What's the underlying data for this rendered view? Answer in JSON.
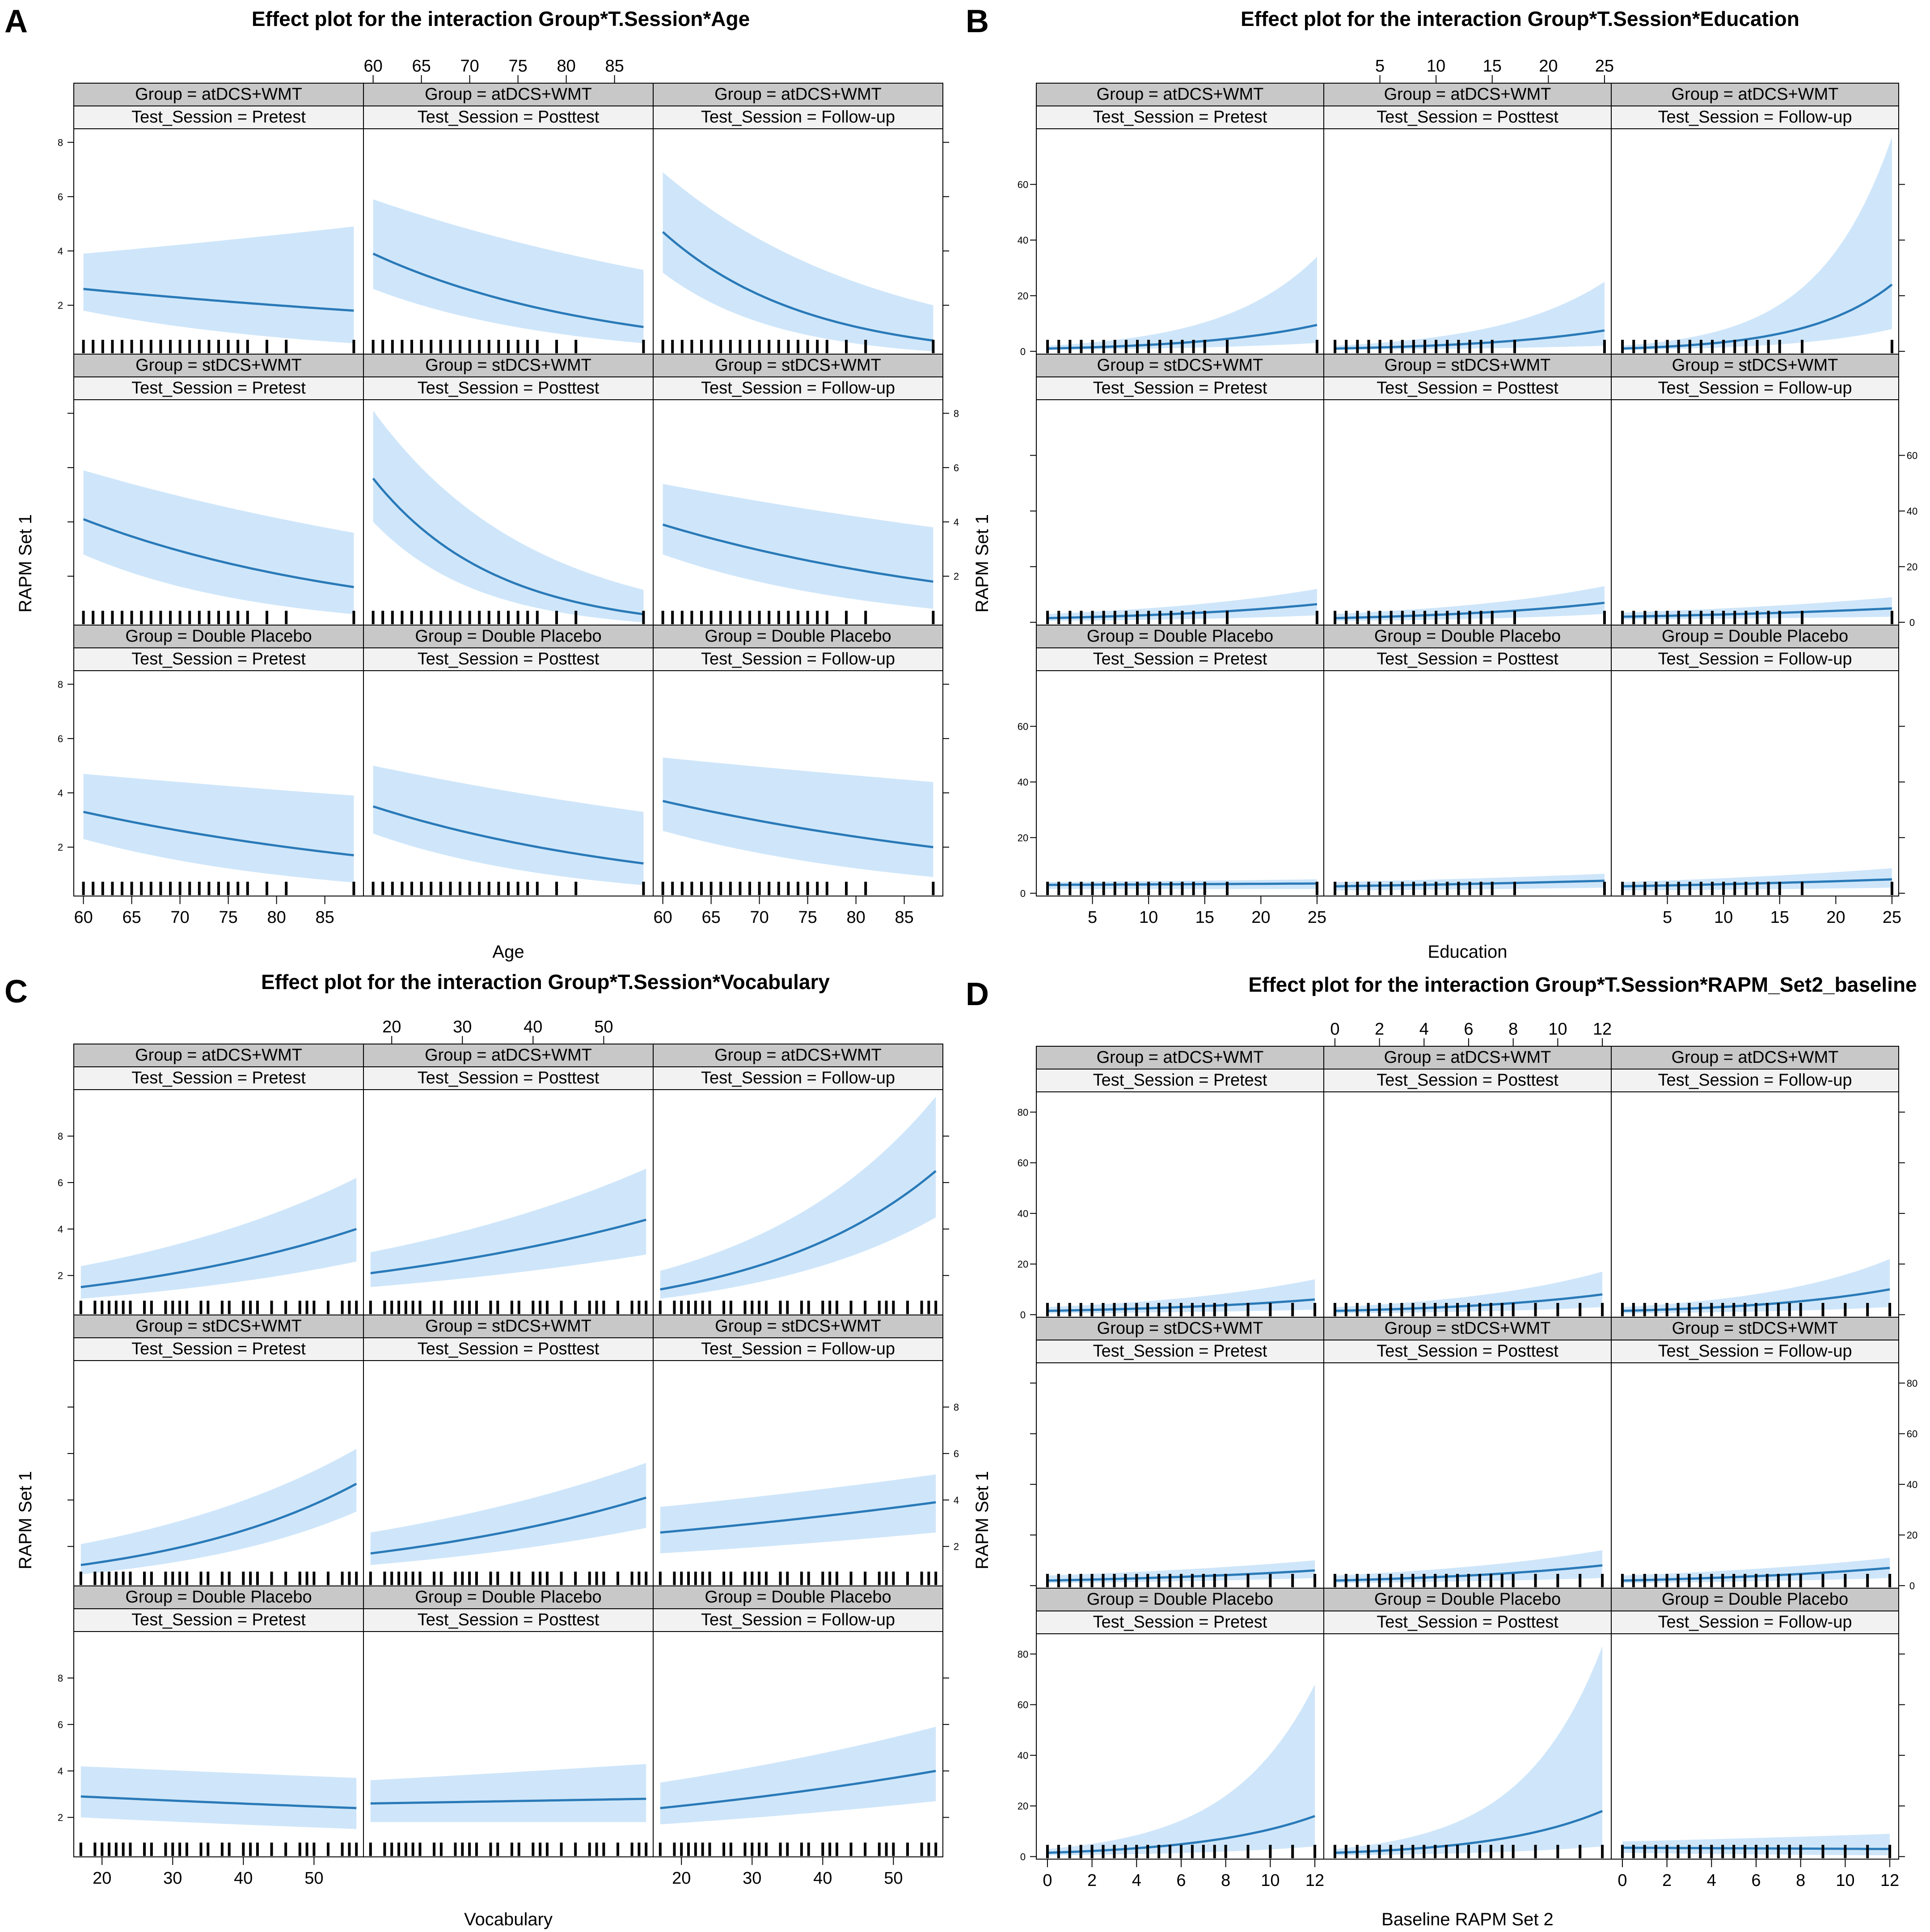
{
  "chart_data": [
    {
      "type": "line",
      "letter": "A",
      "title": "Effect plot for the interaction Group*T.Session*Age",
      "xlabel": "Age",
      "ylabel": "RAPM Set 1",
      "xlim": [
        59,
        89
      ],
      "ylim": [
        0.2,
        8.5
      ],
      "xticks": [
        "60",
        "65",
        "70",
        "75",
        "80",
        "85"
      ],
      "yticks": [
        "2",
        "4",
        "6",
        "8"
      ],
      "rug": [
        60,
        61,
        62,
        63,
        64,
        65,
        66,
        67,
        68,
        69,
        70,
        71,
        72,
        73,
        74,
        75,
        76,
        77,
        79,
        81,
        88
      ],
      "panels": [
        {
          "group": "Group = atDCS+WMT",
          "session": "Test_Session = Pretest",
          "x": [
            60,
            88
          ],
          "y": [
            2.6,
            1.8
          ],
          "lower": [
            1.8,
            0.6
          ],
          "upper": [
            3.9,
            4.9
          ]
        },
        {
          "group": "Group = atDCS+WMT",
          "session": "Test_Session = Posttest",
          "x": [
            60,
            88
          ],
          "y": [
            3.9,
            1.2
          ],
          "lower": [
            2.6,
            0.6
          ],
          "upper": [
            5.9,
            3.3
          ]
        },
        {
          "group": "Group = atDCS+WMT",
          "session": "Test_Session = Follow-up",
          "x": [
            60,
            88
          ],
          "y": [
            4.7,
            0.7
          ],
          "lower": [
            3.2,
            0.3
          ],
          "upper": [
            6.9,
            2.0
          ]
        },
        {
          "group": "Group = stDCS+WMT",
          "session": "Test_Session = Pretest",
          "x": [
            60,
            88
          ],
          "y": [
            4.1,
            1.6
          ],
          "lower": [
            2.8,
            0.6
          ],
          "upper": [
            5.9,
            3.6
          ]
        },
        {
          "group": "Group = stDCS+WMT",
          "session": "Test_Session = Posttest",
          "x": [
            60,
            88
          ],
          "y": [
            5.6,
            0.6
          ],
          "lower": [
            4.0,
            0.3
          ],
          "upper": [
            8.1,
            1.5
          ]
        },
        {
          "group": "Group = stDCS+WMT",
          "session": "Test_Session = Follow-up",
          "x": [
            60,
            88
          ],
          "y": [
            3.9,
            1.8
          ],
          "lower": [
            2.8,
            0.8
          ],
          "upper": [
            5.4,
            3.8
          ]
        },
        {
          "group": "Group = Double Placebo",
          "session": "Test_Session = Pretest",
          "x": [
            60,
            88
          ],
          "y": [
            3.3,
            1.7
          ],
          "lower": [
            2.3,
            0.7
          ],
          "upper": [
            4.7,
            3.9
          ]
        },
        {
          "group": "Group = Double Placebo",
          "session": "Test_Session = Posttest",
          "x": [
            60,
            88
          ],
          "y": [
            3.5,
            1.4
          ],
          "lower": [
            2.5,
            0.6
          ],
          "upper": [
            5.0,
            3.3
          ]
        },
        {
          "group": "Group = Double Placebo",
          "session": "Test_Session = Follow-up",
          "x": [
            60,
            88
          ],
          "y": [
            3.7,
            2.0
          ],
          "lower": [
            2.6,
            0.9
          ],
          "upper": [
            5.3,
            4.4
          ]
        }
      ]
    },
    {
      "type": "line",
      "letter": "B",
      "title": "Effect plot for the interaction Group*T.Session*Education",
      "xlabel": "Education",
      "ylabel": "RAPM Set 1",
      "xlim": [
        0,
        25.6
      ],
      "ylim": [
        -1,
        80
      ],
      "xticks": [
        "5",
        "10",
        "15",
        "20",
        "25"
      ],
      "yticks": [
        "0",
        "20",
        "40",
        "60"
      ],
      "rug": [
        1,
        2,
        3,
        4,
        5,
        6,
        7,
        8,
        9,
        10,
        11,
        12,
        13,
        14,
        15,
        17,
        25
      ],
      "panels": [
        {
          "group": "Group = atDCS+WMT",
          "session": "Test_Session = Pretest",
          "x": [
            1,
            25
          ],
          "y": [
            1,
            9.5
          ],
          "lower": [
            0.5,
            3
          ],
          "upper": [
            2,
            34
          ]
        },
        {
          "group": "Group = atDCS+WMT",
          "session": "Test_Session = Posttest",
          "x": [
            1,
            25
          ],
          "y": [
            1,
            7.5
          ],
          "lower": [
            0.5,
            2
          ],
          "upper": [
            2,
            25
          ]
        },
        {
          "group": "Group = atDCS+WMT",
          "session": "Test_Session = Follow-up",
          "x": [
            1,
            25
          ],
          "y": [
            1,
            24
          ],
          "lower": [
            0.5,
            8
          ],
          "upper": [
            2,
            77
          ]
        },
        {
          "group": "Group = stDCS+WMT",
          "session": "Test_Session = Pretest",
          "x": [
            1,
            25
          ],
          "y": [
            1.5,
            6.5
          ],
          "lower": [
            0.5,
            2.5
          ],
          "upper": [
            3,
            12
          ]
        },
        {
          "group": "Group = stDCS+WMT",
          "session": "Test_Session = Posttest",
          "x": [
            1,
            25
          ],
          "y": [
            1.5,
            7
          ],
          "lower": [
            0.5,
            3
          ],
          "upper": [
            3,
            13
          ]
        },
        {
          "group": "Group = stDCS+WMT",
          "session": "Test_Session = Follow-up",
          "x": [
            1,
            25
          ],
          "y": [
            2,
            5
          ],
          "lower": [
            1,
            2
          ],
          "upper": [
            3.5,
            9
          ]
        },
        {
          "group": "Group = Double Placebo",
          "session": "Test_Session = Pretest",
          "x": [
            1,
            25
          ],
          "y": [
            3,
            3.5
          ],
          "lower": [
            1.5,
            1.5
          ],
          "upper": [
            4,
            5
          ]
        },
        {
          "group": "Group = Double Placebo",
          "session": "Test_Session = Posttest",
          "x": [
            1,
            25
          ],
          "y": [
            2.5,
            4.5
          ],
          "lower": [
            1,
            2
          ],
          "upper": [
            4,
            7
          ]
        },
        {
          "group": "Group = Double Placebo",
          "session": "Test_Session = Follow-up",
          "x": [
            1,
            25
          ],
          "y": [
            2.5,
            5
          ],
          "lower": [
            1,
            2
          ],
          "upper": [
            4,
            9
          ]
        }
      ]
    },
    {
      "type": "line",
      "letter": "C",
      "title": "Effect plot for the interaction Group*T.Session*Vocabulary",
      "xlabel": "Vocabulary",
      "ylabel": "RAPM Set 1",
      "xlim": [
        16,
        57
      ],
      "ylim": [
        0.3,
        10
      ],
      "xticks": [
        "20",
        "30",
        "40",
        "50"
      ],
      "yticks": [
        "2",
        "4",
        "6",
        "8"
      ],
      "rug": [
        17,
        19,
        20,
        21,
        22,
        23,
        24,
        26,
        27,
        29,
        30,
        31,
        32,
        34,
        35,
        37,
        38,
        40,
        41,
        42,
        44,
        46,
        48,
        49,
        50,
        52,
        54,
        55,
        56
      ],
      "panels": [
        {
          "group": "Group = atDCS+WMT",
          "session": "Test_Session = Pretest",
          "x": [
            17,
            56
          ],
          "y": [
            1.5,
            4.0
          ],
          "lower": [
            1.0,
            2.6
          ],
          "upper": [
            2.4,
            6.2
          ]
        },
        {
          "group": "Group = atDCS+WMT",
          "session": "Test_Session = Posttest",
          "x": [
            17,
            56
          ],
          "y": [
            2.1,
            4.4
          ],
          "lower": [
            1.5,
            2.9
          ],
          "upper": [
            3.0,
            6.6
          ]
        },
        {
          "group": "Group = atDCS+WMT",
          "session": "Test_Session = Follow-up",
          "x": [
            17,
            56
          ],
          "y": [
            1.4,
            6.5
          ],
          "lower": [
            1.0,
            4.5
          ],
          "upper": [
            2.2,
            9.7
          ]
        },
        {
          "group": "Group = stDCS+WMT",
          "session": "Test_Session = Pretest",
          "x": [
            17,
            56
          ],
          "y": [
            1.2,
            4.7
          ],
          "lower": [
            0.8,
            3.5
          ],
          "upper": [
            2.1,
            6.2
          ]
        },
        {
          "group": "Group = stDCS+WMT",
          "session": "Test_Session = Posttest",
          "x": [
            17,
            56
          ],
          "y": [
            1.7,
            4.1
          ],
          "lower": [
            1.2,
            2.8
          ],
          "upper": [
            2.6,
            5.6
          ]
        },
        {
          "group": "Group = stDCS+WMT",
          "session": "Test_Session = Follow-up",
          "x": [
            17,
            56
          ],
          "y": [
            2.6,
            3.9
          ],
          "lower": [
            1.7,
            2.6
          ],
          "upper": [
            3.7,
            5.1
          ]
        },
        {
          "group": "Group = Double Placebo",
          "session": "Test_Session = Pretest",
          "x": [
            17,
            56
          ],
          "y": [
            2.9,
            2.4
          ],
          "lower": [
            2.0,
            1.5
          ],
          "upper": [
            4.2,
            3.7
          ]
        },
        {
          "group": "Group = Double Placebo",
          "session": "Test_Session = Posttest",
          "x": [
            17,
            56
          ],
          "y": [
            2.6,
            2.8
          ],
          "lower": [
            1.8,
            1.8
          ],
          "upper": [
            3.6,
            4.3
          ]
        },
        {
          "group": "Group = Double Placebo",
          "session": "Test_Session = Follow-up",
          "x": [
            17,
            56
          ],
          "y": [
            2.4,
            4.0
          ],
          "lower": [
            1.7,
            2.7
          ],
          "upper": [
            3.5,
            5.9
          ]
        }
      ]
    },
    {
      "type": "line",
      "letter": "D",
      "title": "Effect plot for the interaction Group*T.Session*RAPM_Set2_baseline",
      "xlabel": "Baseline RAPM Set 2",
      "ylabel": "RAPM Set 1",
      "xlim": [
        -0.5,
        12.4
      ],
      "ylim": [
        -1,
        88
      ],
      "xticks": [
        "0",
        "2",
        "4",
        "6",
        "8",
        "10",
        "12"
      ],
      "yticks": [
        "0",
        "20",
        "40",
        "60",
        "80"
      ],
      "rug": [
        0,
        0.5,
        1,
        1.5,
        2,
        2.5,
        3,
        3.5,
        4,
        4.5,
        5,
        5.5,
        6,
        6.5,
        7,
        7.5,
        8,
        9,
        10,
        11,
        12
      ],
      "panels": [
        {
          "group": "Group = atDCS+WMT",
          "session": "Test_Session = Pretest",
          "x": [
            0,
            12
          ],
          "y": [
            1.5,
            6
          ],
          "lower": [
            0.5,
            2
          ],
          "upper": [
            3,
            14
          ]
        },
        {
          "group": "Group = atDCS+WMT",
          "session": "Test_Session = Posttest",
          "x": [
            0,
            12
          ],
          "y": [
            1.5,
            8
          ],
          "lower": [
            0.5,
            3
          ],
          "upper": [
            3,
            17
          ]
        },
        {
          "group": "Group = atDCS+WMT",
          "session": "Test_Session = Follow-up",
          "x": [
            0,
            12
          ],
          "y": [
            1.5,
            10
          ],
          "lower": [
            0.5,
            3
          ],
          "upper": [
            3,
            22
          ]
        },
        {
          "group": "Group = stDCS+WMT",
          "session": "Test_Session = Pretest",
          "x": [
            0,
            12
          ],
          "y": [
            2,
            6
          ],
          "lower": [
            1,
            3
          ],
          "upper": [
            4,
            10
          ]
        },
        {
          "group": "Group = stDCS+WMT",
          "session": "Test_Session = Posttest",
          "x": [
            0,
            12
          ],
          "y": [
            2,
            8
          ],
          "lower": [
            1,
            3
          ],
          "upper": [
            4,
            14
          ]
        },
        {
          "group": "Group = stDCS+WMT",
          "session": "Test_Session = Follow-up",
          "x": [
            0,
            12
          ],
          "y": [
            2,
            7
          ],
          "lower": [
            1,
            3
          ],
          "upper": [
            4,
            11
          ]
        },
        {
          "group": "Group = Double Placebo",
          "session": "Test_Session = Pretest",
          "x": [
            0,
            12
          ],
          "y": [
            1.5,
            16
          ],
          "lower": [
            0.5,
            4
          ],
          "upper": [
            3,
            68
          ]
        },
        {
          "group": "Group = Double Placebo",
          "session": "Test_Session = Posttest",
          "x": [
            0,
            12
          ],
          "y": [
            1.5,
            18
          ],
          "lower": [
            0.5,
            4
          ],
          "upper": [
            3,
            83
          ]
        },
        {
          "group": "Group = Double Placebo",
          "session": "Test_Session = Follow-up",
          "x": [
            0,
            12
          ],
          "y": [
            3.5,
            3
          ],
          "lower": [
            1.5,
            0.5
          ],
          "upper": [
            6,
            9
          ]
        }
      ]
    }
  ]
}
